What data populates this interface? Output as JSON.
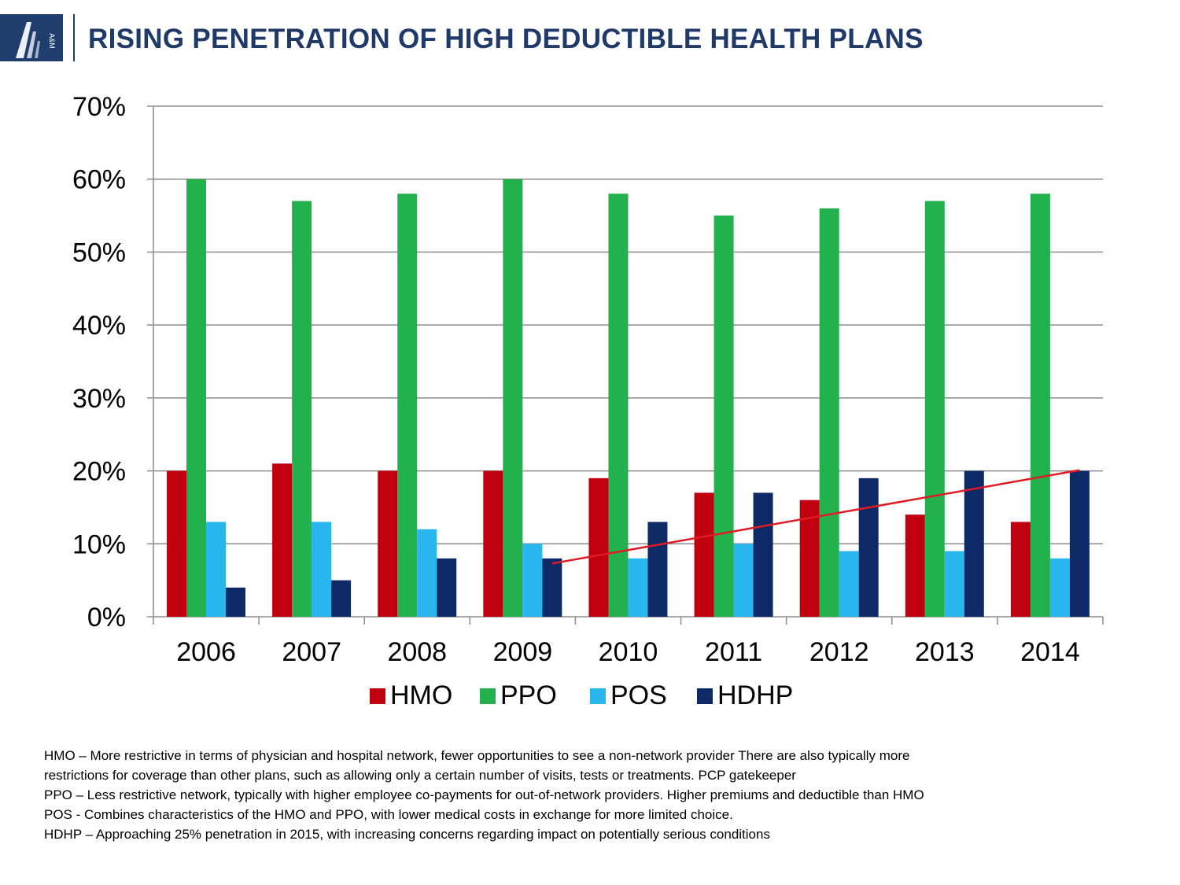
{
  "header": {
    "title": "RISING PENETRATION OF HIGH DEDUCTIBLE HEALTH PLANS",
    "logo_text": "A&M"
  },
  "colors": {
    "brand": "#1f3a68",
    "HMO": "#c0000e",
    "PPO": "#22b14c",
    "POS": "#29b6ef",
    "HDHP": "#0d2a66",
    "trendline": "#e01b24"
  },
  "chart_data": {
    "type": "bar",
    "categories": [
      "2006",
      "2007",
      "2008",
      "2009",
      "2010",
      "2011",
      "2012",
      "2013",
      "2014"
    ],
    "series": [
      {
        "name": "HMO",
        "values": [
          20,
          21,
          20,
          20,
          19,
          17,
          16,
          14,
          13
        ]
      },
      {
        "name": "PPO",
        "values": [
          60,
          57,
          58,
          60,
          58,
          55,
          56,
          57,
          58
        ]
      },
      {
        "name": "POS",
        "values": [
          13,
          13,
          12,
          10,
          8,
          10,
          9,
          9,
          8
        ]
      },
      {
        "name": "HDHP",
        "values": [
          4,
          5,
          8,
          8,
          13,
          17,
          19,
          20,
          20
        ]
      }
    ],
    "trendline": {
      "series": "HDHP",
      "from_category": "2009",
      "to_category": "2014",
      "start_value": 7.3,
      "end_value": 20.1
    },
    "ylim": [
      0,
      70
    ],
    "yticks": [
      0,
      10,
      20,
      30,
      40,
      50,
      60,
      70
    ],
    "ytick_labels": [
      "0%",
      "10%",
      "20%",
      "30%",
      "40%",
      "50%",
      "60%",
      "70%"
    ],
    "title": "",
    "xlabel": "",
    "ylabel": "",
    "grid": true,
    "legend": "bottom"
  },
  "notes": [
    "HMO – More restrictive in terms of  physician and hospital network, fewer opportunities to see a non-network provider  There are also typically more",
    "restrictions for coverage than other plans, such as allowing only a certain number of visits, tests or treatments. PCP gatekeeper",
    "PPO – Less restrictive network, typically with higher employee co-payments for out-of-network providers. Higher premiums and deductible than HMO",
    "POS - Combines characteristics of the HMO and PPO, with lower medical costs in exchange for more limited choice.",
    "HDHP – Approaching 25% penetration in 2015, with increasing concerns regarding impact on potentially serious conditions"
  ]
}
